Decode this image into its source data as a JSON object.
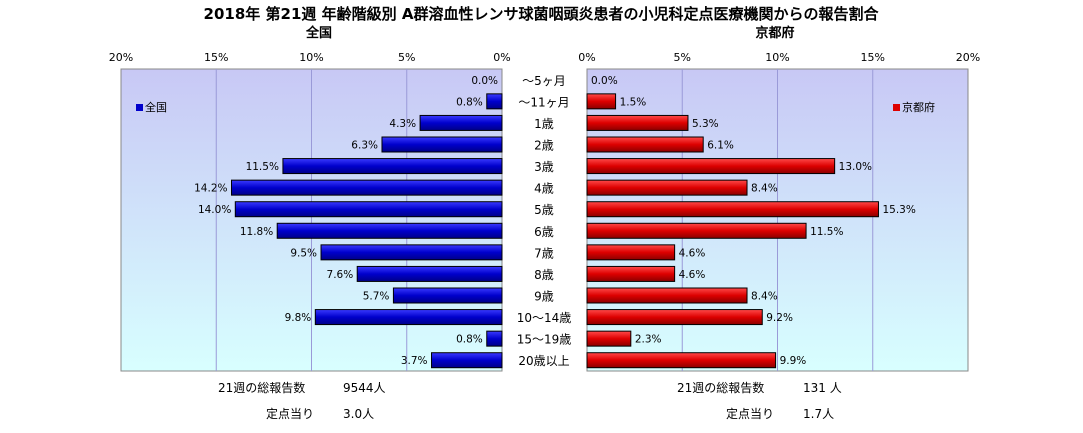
{
  "title": "2018年 第21週 年齢階級別 A群溶血性レンサ球菌咽頭炎患者の小児科定点医療機関からの報告割合",
  "chart_data": {
    "type": "bar",
    "orientation": "horizontal-back-to-back",
    "categories": [
      "〜5ヶ月",
      "〜11ヶ月",
      "1歳",
      "2歳",
      "3歳",
      "4歳",
      "5歳",
      "6歳",
      "7歳",
      "8歳",
      "9歳",
      "10〜14歳",
      "15〜19歳",
      "20歳以上"
    ],
    "series": [
      {
        "name": "全国",
        "values": [
          0.0,
          0.8,
          4.3,
          6.3,
          11.5,
          14.2,
          14.0,
          11.8,
          9.5,
          7.6,
          5.7,
          9.8,
          0.8,
          3.7
        ],
        "color": "#0000cc"
      },
      {
        "name": "京都府",
        "values": [
          0.0,
          1.5,
          5.3,
          6.1,
          13.0,
          8.4,
          15.3,
          11.5,
          4.6,
          4.6,
          8.4,
          9.2,
          2.3,
          9.9
        ],
        "color": "#dd0000"
      }
    ],
    "xlim": [
      0,
      20
    ],
    "ticks": [
      "0%",
      "5%",
      "10%",
      "15%",
      "20%"
    ],
    "value_suffix": "%",
    "grid": true,
    "legend_placement": "inside-top"
  },
  "panels": {
    "left": {
      "title": "全国",
      "legend": "全国",
      "total_label": "21週の総報告数",
      "total_value": "9544人",
      "per_site_label": "定点当り",
      "per_site_value": "3.0人"
    },
    "right": {
      "title": "京都府",
      "legend": "京都府",
      "total_label": "21週の総報告数",
      "total_value": "131 人",
      "per_site_label": "定点当り",
      "per_site_value": "1.7人"
    }
  },
  "colors": {
    "left_bar": "#0000cc",
    "right_bar": "#dd0000",
    "plot_bg_top": "#c8c8f5",
    "plot_bg_bottom": "#d8ffff"
  }
}
